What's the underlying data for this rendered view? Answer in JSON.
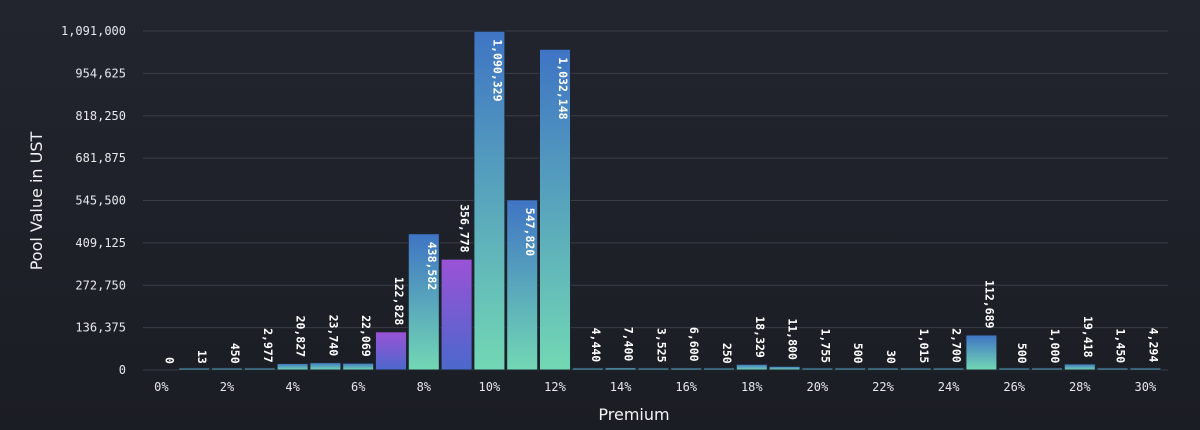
{
  "chart_data": {
    "type": "bar",
    "xlabel": "Premium",
    "ylabel": "Pool Value in UST",
    "ylim": [
      0,
      1091000
    ],
    "y_ticks": [
      "0",
      "136,375",
      "272,750",
      "409,125",
      "545,500",
      "681,875",
      "818,250",
      "954,625",
      "1,091,000"
    ],
    "y_tick_values": [
      0,
      136375,
      272750,
      409125,
      545500,
      681875,
      818250,
      954625,
      1091000
    ],
    "x_tick_labels": [
      "0%",
      "2%",
      "4%",
      "6%",
      "8%",
      "10%",
      "12%",
      "14%",
      "16%",
      "18%",
      "20%",
      "22%",
      "24%",
      "26%",
      "28%",
      "30%"
    ],
    "x_tick_values": [
      0,
      2,
      4,
      6,
      8,
      10,
      12,
      14,
      16,
      18,
      20,
      22,
      24,
      26,
      28,
      30
    ],
    "grid": true,
    "bars": [
      {
        "premium": 0,
        "value": 0,
        "label": "0"
      },
      {
        "premium": 1,
        "value": 13,
        "label": "13"
      },
      {
        "premium": 2,
        "value": 450,
        "label": "450"
      },
      {
        "premium": 3,
        "value": 2977,
        "label": "2,977"
      },
      {
        "premium": 4,
        "value": 20827,
        "label": "20,827"
      },
      {
        "premium": 5,
        "value": 23740,
        "label": "23,740"
      },
      {
        "premium": 6,
        "value": 22069,
        "label": "22,069"
      },
      {
        "premium": 7,
        "value": 122828,
        "label": "122,828",
        "color": "purple"
      },
      {
        "premium": 8,
        "value": 438582,
        "label": "438,582"
      },
      {
        "premium": 9,
        "value": 356778,
        "label": "356,778",
        "color": "purple"
      },
      {
        "premium": 10,
        "value": 1090329,
        "label": "1,090,329"
      },
      {
        "premium": 11,
        "value": 547820,
        "label": "547,820"
      },
      {
        "premium": 12,
        "value": 1032148,
        "label": "1,032,148"
      },
      {
        "premium": 13,
        "value": 4440,
        "label": "4,440"
      },
      {
        "premium": 14,
        "value": 7400,
        "label": "7,400"
      },
      {
        "premium": 15,
        "value": 3525,
        "label": "3,525"
      },
      {
        "premium": 16,
        "value": 6600,
        "label": "6,600"
      },
      {
        "premium": 17,
        "value": 250,
        "label": "250"
      },
      {
        "premium": 18,
        "value": 18329,
        "label": "18,329"
      },
      {
        "premium": 19,
        "value": 11800,
        "label": "11,800"
      },
      {
        "premium": 20,
        "value": 1755,
        "label": "1,755"
      },
      {
        "premium": 21,
        "value": 500,
        "label": "500"
      },
      {
        "premium": 22,
        "value": 30,
        "label": "30"
      },
      {
        "premium": 23,
        "value": 1015,
        "label": "1,015"
      },
      {
        "premium": 24,
        "value": 2700,
        "label": "2,700"
      },
      {
        "premium": 25,
        "value": 112689,
        "label": "112,689"
      },
      {
        "premium": 26,
        "value": 500,
        "label": "500"
      },
      {
        "premium": 27,
        "value": 1000,
        "label": "1,000"
      },
      {
        "premium": 28,
        "value": 19418,
        "label": "19,418"
      },
      {
        "premium": 29,
        "value": 1450,
        "label": "1,450"
      },
      {
        "premium": 30,
        "value": 4294,
        "label": "4,294"
      }
    ]
  },
  "colors": {
    "bar_top": "#3f74c4",
    "bar_bottom": "#72d8b4",
    "purple_top": "#9b52d6",
    "purple_bottom": "#4b68cc",
    "bar_edge": "#1e2530",
    "background": "#1f2129"
  }
}
